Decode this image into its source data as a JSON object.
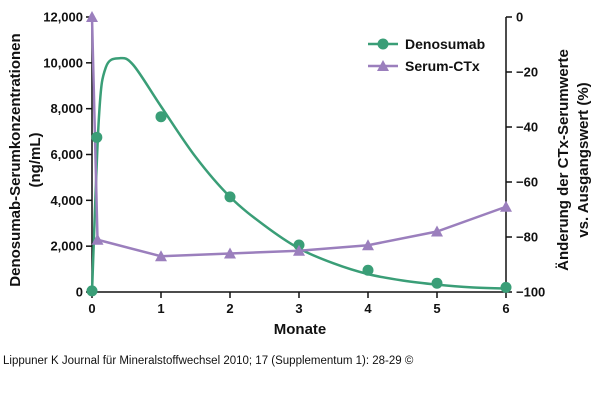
{
  "chart_data": {
    "type": "line",
    "xlabel": "Monate",
    "ylabel_left_line1": "Denosumab-Serumkonzentrationen",
    "ylabel_left_line2": "(ng/mL)",
    "ylabel_right_line1": "Änderung der CTx-Serumwerte",
    "ylabel_right_line2": "vs. Ausgangswert (%)",
    "x_ticks": [
      "0",
      "1",
      "2",
      "3",
      "4",
      "5",
      "6"
    ],
    "xlim": [
      0,
      6
    ],
    "ylim_left": [
      0,
      12000
    ],
    "ylim_right": [
      -100,
      0
    ],
    "y_ticks_left": [
      "0",
      "2,000",
      "4,000",
      "6,000",
      "8,000",
      "10,000",
      "12,000"
    ],
    "y_ticks_right": [
      "-100",
      "-80",
      "-60",
      "-40",
      "-20",
      "0"
    ],
    "legend_position": "top-right",
    "series": [
      {
        "name": "Denosumab",
        "axis": "left",
        "color": "#3a9e77",
        "marker": "circle",
        "points": [
          [
            0,
            50
          ],
          [
            0.07,
            6750
          ],
          [
            1,
            7650
          ],
          [
            2,
            4150
          ],
          [
            3,
            2050
          ],
          [
            4,
            950
          ],
          [
            5,
            380
          ],
          [
            6,
            200
          ]
        ],
        "fitted_curve": [
          [
            0,
            0
          ],
          [
            0.1,
            7600
          ],
          [
            0.2,
            9800
          ],
          [
            0.4,
            10200
          ],
          [
            0.6,
            9900
          ],
          [
            1,
            8100
          ],
          [
            1.5,
            5900
          ],
          [
            2,
            4150
          ],
          [
            2.5,
            2900
          ],
          [
            3,
            1900
          ],
          [
            3.5,
            1250
          ],
          [
            4,
            780
          ],
          [
            4.5,
            500
          ],
          [
            5,
            320
          ],
          [
            5.5,
            200
          ],
          [
            6,
            150
          ]
        ]
      },
      {
        "name": "Serum-CTx",
        "axis": "right",
        "color": "#9b7fbd",
        "marker": "triangle",
        "points": [
          [
            0,
            0
          ],
          [
            0.08,
            -81
          ],
          [
            1,
            -87
          ],
          [
            2,
            -86
          ],
          [
            3,
            -85
          ],
          [
            4,
            -83
          ],
          [
            5,
            -78
          ],
          [
            6,
            -69
          ]
        ]
      }
    ]
  },
  "source_text": "Lippuner K Journal für Mineralstoffwechsel 2010; 17 (Supplementum 1): 28-29 ©"
}
